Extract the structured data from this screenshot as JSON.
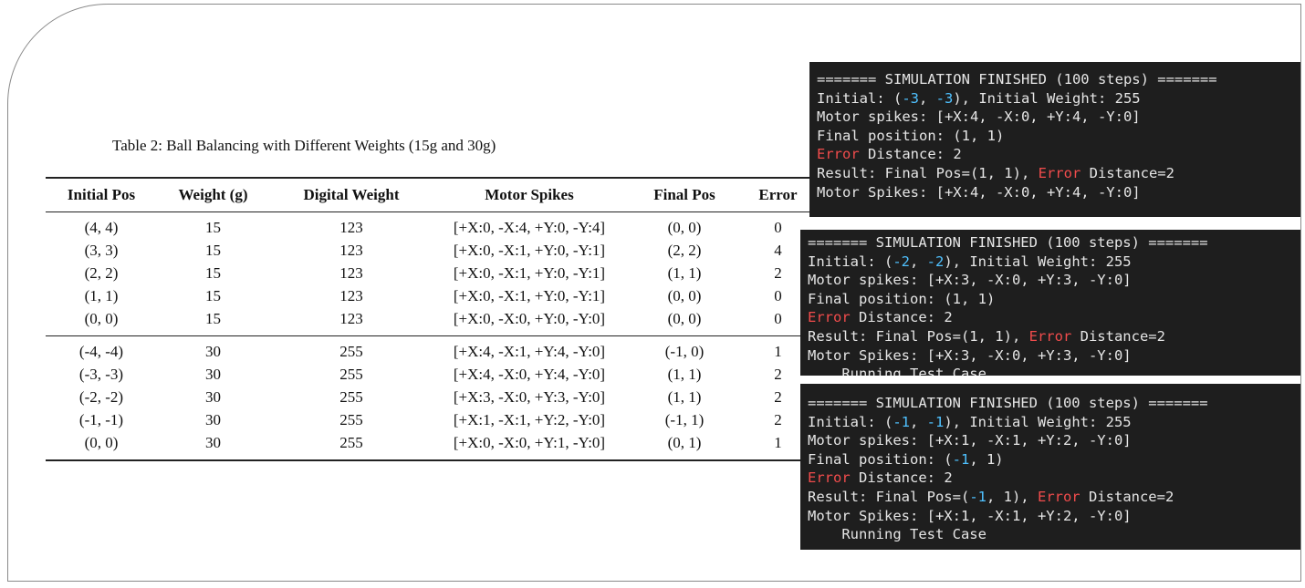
{
  "table": {
    "caption": "Table 2: Ball Balancing with Different Weights (15g and 30g)",
    "header": [
      "Initial Pos",
      "Weight (g)",
      "Digital Weight",
      "Motor Spikes",
      "Final Pos",
      "Error"
    ],
    "groups": [
      [
        [
          "(4, 4)",
          "15",
          "123",
          "[+X:0, -X:4, +Y:0, -Y:4]",
          "(0, 0)",
          "0"
        ],
        [
          "(3, 3)",
          "15",
          "123",
          "[+X:0, -X:1, +Y:0, -Y:1]",
          "(2, 2)",
          "4"
        ],
        [
          "(2, 2)",
          "15",
          "123",
          "[+X:0, -X:1, +Y:0, -Y:1]",
          "(1, 1)",
          "2"
        ],
        [
          "(1, 1)",
          "15",
          "123",
          "[+X:0, -X:1, +Y:0, -Y:1]",
          "(0, 0)",
          "0"
        ],
        [
          "(0, 0)",
          "15",
          "123",
          "[+X:0, -X:0, +Y:0, -Y:0]",
          "(0, 0)",
          "0"
        ]
      ],
      [
        [
          "(-4, -4)",
          "30",
          "255",
          "[+X:4, -X:1, +Y:4, -Y:0]",
          "(-1, 0)",
          "1"
        ],
        [
          "(-3, -3)",
          "30",
          "255",
          "[+X:4, -X:0, +Y:4, -Y:0]",
          "(1, 1)",
          "2"
        ],
        [
          "(-2, -2)",
          "30",
          "255",
          "[+X:3, -X:0, +Y:3, -Y:0]",
          "(1, 1)",
          "2"
        ],
        [
          "(-1, -1)",
          "30",
          "255",
          "[+X:1, -X:1, +Y:2, -Y:0]",
          "(-1, 1)",
          "2"
        ],
        [
          "(0, 0)",
          "30",
          "255",
          "[+X:0, -X:0, +Y:1, -Y:0]",
          "(0, 1)",
          "1"
        ]
      ]
    ]
  },
  "terminals": [
    {
      "lines": [
        [
          {
            "text": "======= SIMULATION FINISHED (100 steps) ======="
          }
        ],
        [
          {
            "text": "Initial: ("
          },
          {
            "text": "-3",
            "color": "#4fc1ff"
          },
          {
            "text": ", "
          },
          {
            "text": "-3",
            "color": "#4fc1ff"
          },
          {
            "text": "), Initial Weight: 255"
          }
        ],
        [
          {
            "text": "Motor spikes: [+X:4, -X:0, +Y:4, -Y:0]"
          }
        ],
        [
          {
            "text": "Final position: (1, 1)"
          }
        ],
        [
          {
            "text": "Error",
            "color": "#f14c4c"
          },
          {
            "text": " Distance: 2"
          }
        ],
        [
          {
            "text": "Result: Final Pos=(1, 1), "
          },
          {
            "text": "Error",
            "color": "#f14c4c"
          },
          {
            "text": " Distance=2"
          }
        ],
        [
          {
            "text": "Motor Spikes: [+X:4, -X:0, +Y:4, -Y:0]"
          }
        ]
      ]
    },
    {
      "lines": [
        [
          {
            "text": "======= SIMULATION FINISHED (100 steps) ======="
          }
        ],
        [
          {
            "text": "Initial: ("
          },
          {
            "text": "-2",
            "color": "#4fc1ff"
          },
          {
            "text": ", "
          },
          {
            "text": "-2",
            "color": "#4fc1ff"
          },
          {
            "text": "), Initial Weight: 255"
          }
        ],
        [
          {
            "text": "Motor spikes: [+X:3, -X:0, +Y:3, -Y:0]"
          }
        ],
        [
          {
            "text": "Final position: (1, 1)"
          }
        ],
        [
          {
            "text": "Error",
            "color": "#f14c4c"
          },
          {
            "text": " Distance: 2"
          }
        ],
        [
          {
            "text": "Result: Final Pos=(1, 1), "
          },
          {
            "text": "Error",
            "color": "#f14c4c"
          },
          {
            "text": " Distance=2"
          }
        ],
        [
          {
            "text": "Motor Spikes: [+X:3, -X:0, +Y:3, -Y:0]"
          }
        ],
        [
          {
            "text": "    Running Test Case"
          }
        ]
      ]
    },
    {
      "lines": [
        [
          {
            "text": "======= SIMULATION FINISHED (100 steps) ======="
          }
        ],
        [
          {
            "text": "Initial: ("
          },
          {
            "text": "-1",
            "color": "#4fc1ff"
          },
          {
            "text": ", "
          },
          {
            "text": "-1",
            "color": "#4fc1ff"
          },
          {
            "text": "), Initial Weight: 255"
          }
        ],
        [
          {
            "text": "Motor spikes: [+X:1, -X:1, +Y:2, -Y:0]"
          }
        ],
        [
          {
            "text": "Final position: ("
          },
          {
            "text": "-1",
            "color": "#4fc1ff"
          },
          {
            "text": ", 1)"
          }
        ],
        [
          {
            "text": "Error",
            "color": "#f14c4c"
          },
          {
            "text": " Distance: 2"
          }
        ],
        [
          {
            "text": "Result: Final Pos=("
          },
          {
            "text": "-1",
            "color": "#4fc1ff"
          },
          {
            "text": ", 1), "
          },
          {
            "text": "Error",
            "color": "#f14c4c"
          },
          {
            "text": " Distance=2"
          }
        ],
        [
          {
            "text": "Motor Spikes: [+X:1, -X:1, +Y:2, -Y:0]"
          }
        ],
        [
          {
            "text": "    Running Test Case"
          }
        ]
      ]
    }
  ]
}
